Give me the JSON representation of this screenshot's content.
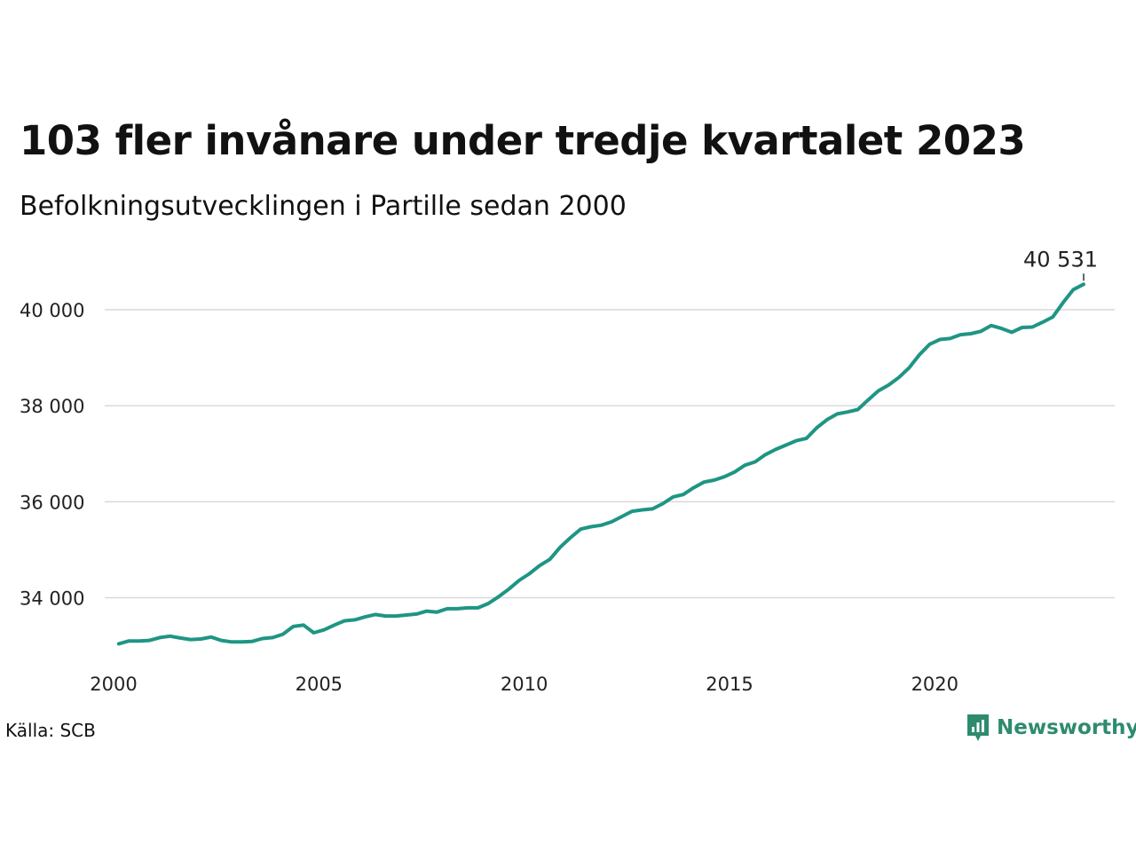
{
  "title": "103 fler invånare under tredje kvartalet 2023",
  "subtitle": "Befolkningsutvecklingen i Partille sedan 2000",
  "source": "Källa: SCB",
  "brand": "Newsworthy",
  "colors": {
    "line": "#1f9584",
    "grid": "#d9d9d9",
    "brand": "#2e8b6e"
  },
  "chart_data": {
    "type": "line",
    "title": "103 fler invånare under tredje kvartalet 2023",
    "subtitle": "Befolkningsutvecklingen i Partille sedan 2000",
    "xlabel": "",
    "ylabel": "",
    "xlim": [
      2000,
      2024.6
    ],
    "ylim": [
      32600,
      41000
    ],
    "x_ticks": [
      2000,
      2005,
      2010,
      2015,
      2020
    ],
    "y_ticks": [
      34000,
      36000,
      38000,
      40000
    ],
    "y_tick_labels": [
      "34 000",
      "36 000",
      "38 000",
      "40 000"
    ],
    "grid": true,
    "last_label": "40 531",
    "x": [
      2000.125,
      2000.375,
      2000.625,
      2000.875,
      2001.125,
      2001.375,
      2001.625,
      2001.875,
      2002.125,
      2002.375,
      2002.625,
      2002.875,
      2003.125,
      2003.375,
      2003.625,
      2003.875,
      2004.125,
      2004.375,
      2004.625,
      2004.875,
      2005.125,
      2005.375,
      2005.625,
      2005.875,
      2006.125,
      2006.375,
      2006.625,
      2006.875,
      2007.125,
      2007.375,
      2007.625,
      2007.875,
      2008.125,
      2008.375,
      2008.625,
      2008.875,
      2009.125,
      2009.375,
      2009.625,
      2009.875,
      2010.125,
      2010.375,
      2010.625,
      2010.875,
      2011.125,
      2011.375,
      2011.625,
      2011.875,
      2012.125,
      2012.375,
      2012.625,
      2012.875,
      2013.125,
      2013.375,
      2013.625,
      2013.875,
      2014.125,
      2014.375,
      2014.625,
      2014.875,
      2015.125,
      2015.375,
      2015.625,
      2015.875,
      2016.125,
      2016.375,
      2016.625,
      2016.875,
      2017.125,
      2017.375,
      2017.625,
      2017.875,
      2018.125,
      2018.375,
      2018.625,
      2018.875,
      2019.125,
      2019.375,
      2019.625,
      2019.875,
      2020.125,
      2020.375,
      2020.625,
      2020.875,
      2021.125,
      2021.375,
      2021.625,
      2021.875,
      2022.125,
      2022.375,
      2022.625,
      2022.875,
      2023.125,
      2023.375,
      2023.625
    ],
    "series": [
      {
        "values": [
          33040,
          33100,
          33100,
          33110,
          33170,
          33200,
          33160,
          33130,
          33140,
          33180,
          33110,
          33080,
          33080,
          33090,
          33150,
          33170,
          33240,
          33400,
          33430,
          33270,
          33330,
          33430,
          33520,
          33540,
          33600,
          33650,
          33620,
          33620,
          33640,
          33660,
          33720,
          33700,
          33770,
          33770,
          33790,
          33790,
          33880,
          34020,
          34180,
          34360,
          34500,
          34670,
          34800,
          35050,
          35250,
          35430,
          35480,
          35510,
          35580,
          35690,
          35800,
          35830,
          35850,
          35960,
          36100,
          36150,
          36290,
          36410,
          36450,
          36520,
          36620,
          36760,
          36830,
          36980,
          37090,
          37180,
          37270,
          37320,
          37540,
          37710,
          37830,
          37870,
          37920,
          38120,
          38310,
          38430,
          38590,
          38790,
          39060,
          39280,
          39380,
          39400,
          39480,
          39500,
          39550,
          39670,
          39610,
          39530,
          39630,
          39640,
          39740,
          39850,
          40150,
          40420,
          40531
        ]
      }
    ]
  }
}
